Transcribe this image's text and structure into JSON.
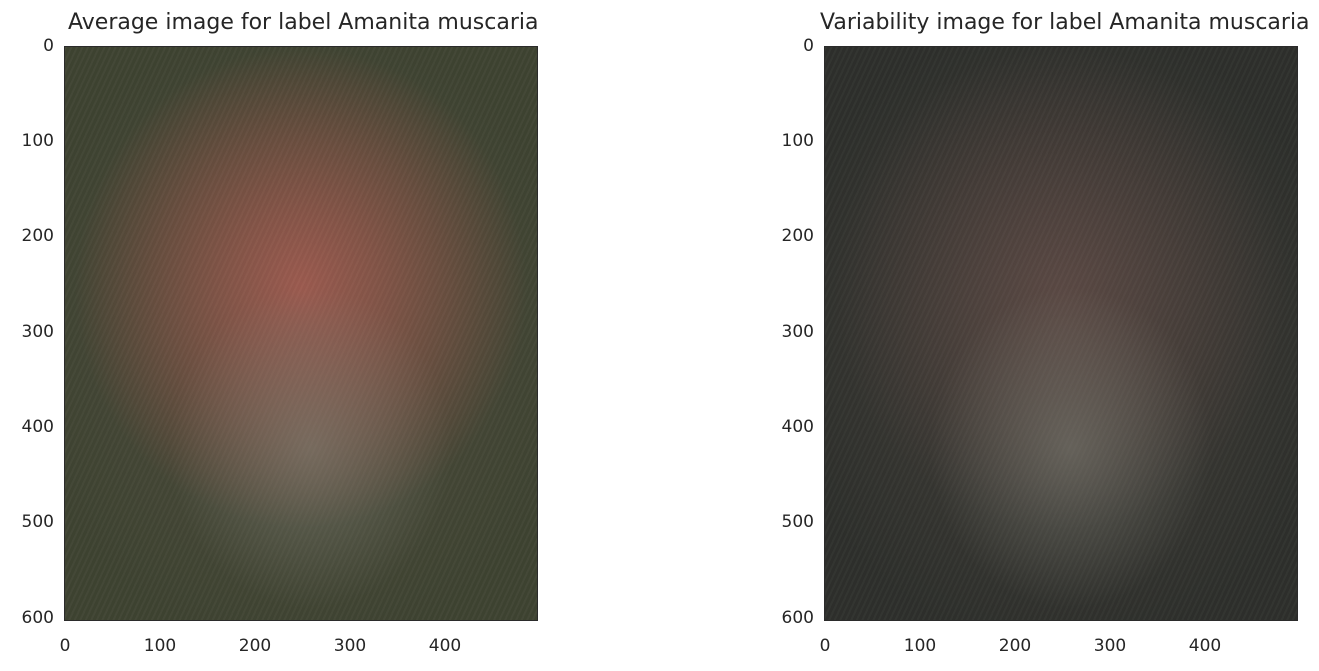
{
  "panels": [
    {
      "title": "Average image for label Amanita muscaria",
      "base_color": "#3f4432",
      "center_color": "#c45d52",
      "xticks": [
        "0",
        "100",
        "200",
        "300",
        "400"
      ],
      "yticks": [
        "0",
        "100",
        "200",
        "300",
        "400",
        "500",
        "600"
      ]
    },
    {
      "title": "Variability image for label Amanita muscaria",
      "base_color": "#2e302c",
      "center_color": "#6a4a48",
      "xticks": [
        "0",
        "100",
        "200",
        "300",
        "400"
      ],
      "yticks": [
        "0",
        "100",
        "200",
        "300",
        "400",
        "500",
        "600"
      ]
    }
  ]
}
